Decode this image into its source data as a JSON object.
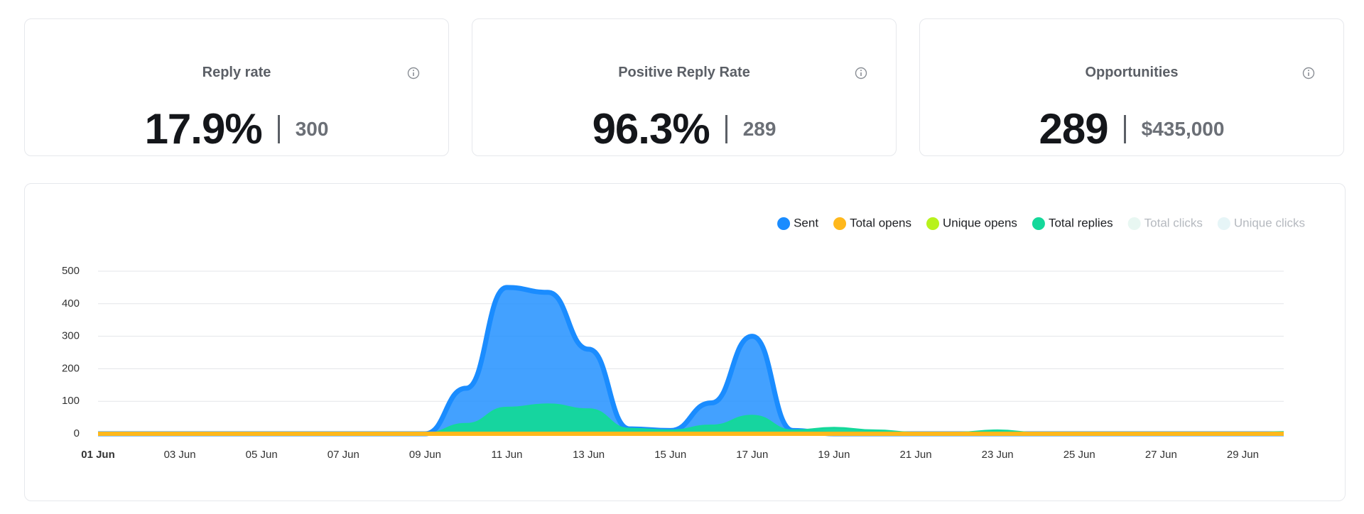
{
  "cards": [
    {
      "title": "Reply rate",
      "value": "17.9%",
      "secondary": "300"
    },
    {
      "title": "Positive Reply Rate",
      "value": "96.3%",
      "secondary": "289"
    },
    {
      "title": "Opportunities",
      "value": "289",
      "secondary": "$435,000"
    }
  ],
  "chart_data": {
    "type": "area",
    "categories": [
      "01 Jun",
      null,
      "03 Jun",
      null,
      "05 Jun",
      null,
      "07 Jun",
      null,
      "09 Jun",
      null,
      "11 Jun",
      null,
      "13 Jun",
      null,
      "15 Jun",
      null,
      "17 Jun",
      null,
      "19 Jun",
      null,
      "21 Jun",
      null,
      "23 Jun",
      null,
      "25 Jun",
      null,
      "27 Jun",
      null,
      "29 Jun",
      null
    ],
    "series": [
      {
        "name": "Sent",
        "color": "#1a8cff",
        "values": [
          0,
          0,
          0,
          0,
          0,
          0,
          0,
          0,
          0,
          140,
          450,
          435,
          260,
          15,
          10,
          95,
          300,
          10,
          0,
          0,
          0,
          0,
          0,
          0,
          0,
          0,
          0,
          0,
          0,
          0
        ]
      },
      {
        "name": "Total opens",
        "color": "#ffb81c",
        "values": [
          0,
          0,
          0,
          0,
          0,
          0,
          0,
          0,
          0,
          0,
          0,
          0,
          0,
          0,
          0,
          0,
          0,
          0,
          0,
          0,
          0,
          0,
          0,
          0,
          0,
          0,
          0,
          0,
          0,
          0
        ]
      },
      {
        "name": "Unique opens",
        "color": "#b8f21c",
        "values": [
          0,
          0,
          0,
          0,
          0,
          0,
          0,
          0,
          0,
          0,
          0,
          0,
          0,
          0,
          0,
          0,
          0,
          0,
          0,
          0,
          0,
          0,
          0,
          0,
          0,
          0,
          0,
          0,
          0,
          0
        ]
      },
      {
        "name": "Total replies",
        "color": "#14d89a",
        "values": [
          0,
          0,
          0,
          0,
          0,
          0,
          0,
          0,
          0,
          30,
          80,
          90,
          75,
          15,
          10,
          25,
          55,
          10,
          18,
          10,
          3,
          3,
          10,
          2,
          0,
          0,
          0,
          0,
          0,
          5
        ]
      },
      {
        "name": "Total clicks",
        "color": "#e8f7f2",
        "hidden": true
      },
      {
        "name": "Unique clicks",
        "color": "#e6f5f7",
        "hidden": true
      }
    ],
    "ylim": [
      0,
      500
    ],
    "yticks": [
      0,
      100,
      200,
      300,
      400,
      500
    ],
    "grid": true,
    "legend": "top-right"
  }
}
